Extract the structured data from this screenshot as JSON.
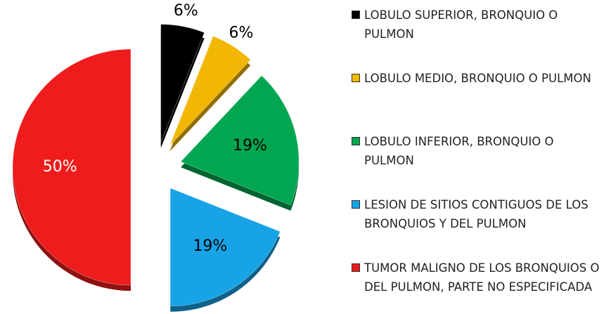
{
  "chart_data": {
    "type": "pie",
    "categories": [
      "LOBULO SUPERIOR, BRONQUIO O PULMON",
      "LOBULO MEDIO, BRONQUIO O PULMON",
      "LOBULO INFERIOR, BRONQUIO O PULMON",
      "LESION DE SITIOS CONTIGUOS DE LOS BRONQUIOS Y DEL PULMON",
      "TUMOR MALIGNO DE LOS BRONQUIOS O DEL PULMON, PARTE NO ESPECIFICADA"
    ],
    "values": [
      6,
      6,
      19,
      19,
      50
    ],
    "value_labels": [
      "6%",
      "6%",
      "19%",
      "19%",
      "50%"
    ],
    "colors": [
      "#000000",
      "#f2b705",
      "#00a650",
      "#17a3e6",
      "#ee1c1c"
    ]
  }
}
